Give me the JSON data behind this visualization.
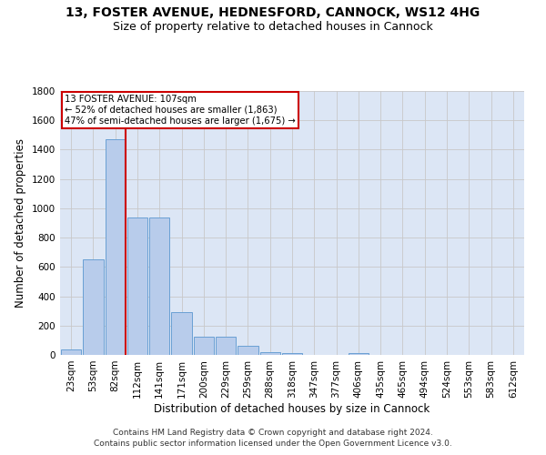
{
  "title": "13, FOSTER AVENUE, HEDNESFORD, CANNOCK, WS12 4HG",
  "subtitle": "Size of property relative to detached houses in Cannock",
  "xlabel": "Distribution of detached houses by size in Cannock",
  "ylabel": "Number of detached properties",
  "categories": [
    "23sqm",
    "53sqm",
    "82sqm",
    "112sqm",
    "141sqm",
    "171sqm",
    "200sqm",
    "229sqm",
    "259sqm",
    "288sqm",
    "318sqm",
    "347sqm",
    "377sqm",
    "406sqm",
    "435sqm",
    "465sqm",
    "494sqm",
    "524sqm",
    "553sqm",
    "583sqm",
    "612sqm"
  ],
  "values": [
    38,
    650,
    1470,
    935,
    935,
    290,
    125,
    125,
    60,
    20,
    12,
    0,
    0,
    12,
    0,
    0,
    0,
    0,
    0,
    0,
    0
  ],
  "bar_color": "#b8cceb",
  "bar_edge_color": "#6aa0d4",
  "vline_color": "#cc0000",
  "annotation_title": "13 FOSTER AVENUE: 107sqm",
  "annotation_line1": "← 52% of detached houses are smaller (1,863)",
  "annotation_line2": "47% of semi-detached houses are larger (1,675) →",
  "annotation_box_color": "#cc0000",
  "ylim": [
    0,
    1800
  ],
  "yticks": [
    0,
    200,
    400,
    600,
    800,
    1000,
    1200,
    1400,
    1600,
    1800
  ],
  "grid_color": "#c8c8c8",
  "bg_color": "#dce6f5",
  "footer_line1": "Contains HM Land Registry data © Crown copyright and database right 2024.",
  "footer_line2": "Contains public sector information licensed under the Open Government Licence v3.0.",
  "title_fontsize": 10,
  "subtitle_fontsize": 9,
  "axis_label_fontsize": 8.5,
  "tick_fontsize": 7.5,
  "footer_fontsize": 6.5
}
